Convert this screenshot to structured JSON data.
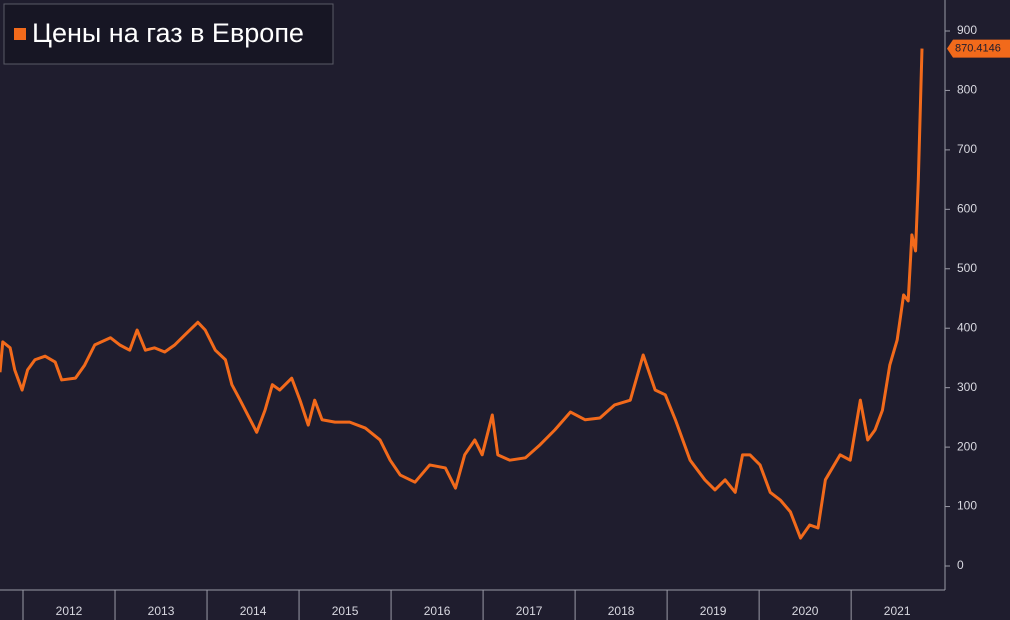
{
  "chart_data": {
    "type": "line",
    "series": [
      {
        "name": "Цены на газ в Европе",
        "color": "#f26a1b",
        "x": [
          2011.75,
          2011.78,
          2011.86,
          2011.91,
          2011.99,
          2012.05,
          2012.13,
          2012.24,
          2012.35,
          2012.42,
          2012.57,
          2012.67,
          2012.78,
          2012.95,
          2013.05,
          2013.16,
          2013.24,
          2013.33,
          2013.43,
          2013.54,
          2013.65,
          2013.76,
          2013.9,
          2013.98,
          2014.09,
          2014.2,
          2014.27,
          2014.36,
          2014.47,
          2014.54,
          2014.63,
          2014.71,
          2014.79,
          2014.92,
          2015.01,
          2015.1,
          2015.17,
          2015.25,
          2015.39,
          2015.55,
          2015.72,
          2015.88,
          2015.99,
          2016.1,
          2016.26,
          2016.42,
          2016.59,
          2016.7,
          2016.8,
          2016.91,
          2016.99,
          2017.1,
          2017.16,
          2017.29,
          2017.46,
          2017.62,
          2017.78,
          2017.95,
          2018.11,
          2018.27,
          2018.43,
          2018.6,
          2018.74,
          2018.87,
          2018.98,
          2019.09,
          2019.25,
          2019.41,
          2019.52,
          2019.63,
          2019.74,
          2019.82,
          2019.9,
          2020.01,
          2020.12,
          2020.23,
          2020.34,
          2020.45,
          2020.55,
          2020.64,
          2020.72,
          2020.88,
          2020.99,
          2021.1,
          2021.18,
          2021.26,
          2021.34,
          2021.42,
          2021.5,
          2021.57,
          2021.62,
          2021.66,
          2021.7,
          2021.73,
          2021.77
        ],
        "values": [
          326,
          377,
          367,
          330,
          296,
          330,
          347,
          353,
          343,
          313,
          316,
          338,
          372,
          384,
          372,
          363,
          397,
          363,
          367,
          360,
          372,
          389,
          410,
          397,
          363,
          347,
          305,
          279,
          246,
          225,
          262,
          305,
          296,
          316,
          279,
          237,
          279,
          246,
          242,
          242,
          232,
          212,
          178,
          153,
          141,
          170,
          165,
          131,
          187,
          212,
          187,
          254,
          187,
          178,
          182,
          204,
          229,
          259,
          246,
          249,
          271,
          279,
          355,
          296,
          288,
          246,
          178,
          145,
          128,
          145,
          124,
          187,
          187,
          170,
          124,
          111,
          91,
          47,
          69,
          64,
          145,
          187,
          178,
          279,
          212,
          229,
          262,
          338,
          380,
          456,
          446,
          557,
          530,
          649,
          870.4146
        ]
      }
    ],
    "xlim": [
      2011.75,
      2022.02
    ],
    "xticks": [
      {
        "value": 2012.5,
        "label": "2012"
      },
      {
        "value": 2013.5,
        "label": "2013"
      },
      {
        "value": 2014.5,
        "label": "2014"
      },
      {
        "value": 2015.5,
        "label": "2015"
      },
      {
        "value": 2016.5,
        "label": "2016"
      },
      {
        "value": 2017.5,
        "label": "2017"
      },
      {
        "value": 2018.5,
        "label": "2018"
      },
      {
        "value": 2019.5,
        "label": "2019"
      },
      {
        "value": 2020.5,
        "label": "2020"
      },
      {
        "value": 2021.5,
        "label": "2021"
      }
    ],
    "ylim": [
      0,
      900
    ],
    "yticks": [
      0,
      100,
      200,
      300,
      400,
      500,
      600,
      700,
      800,
      900
    ]
  }
}
